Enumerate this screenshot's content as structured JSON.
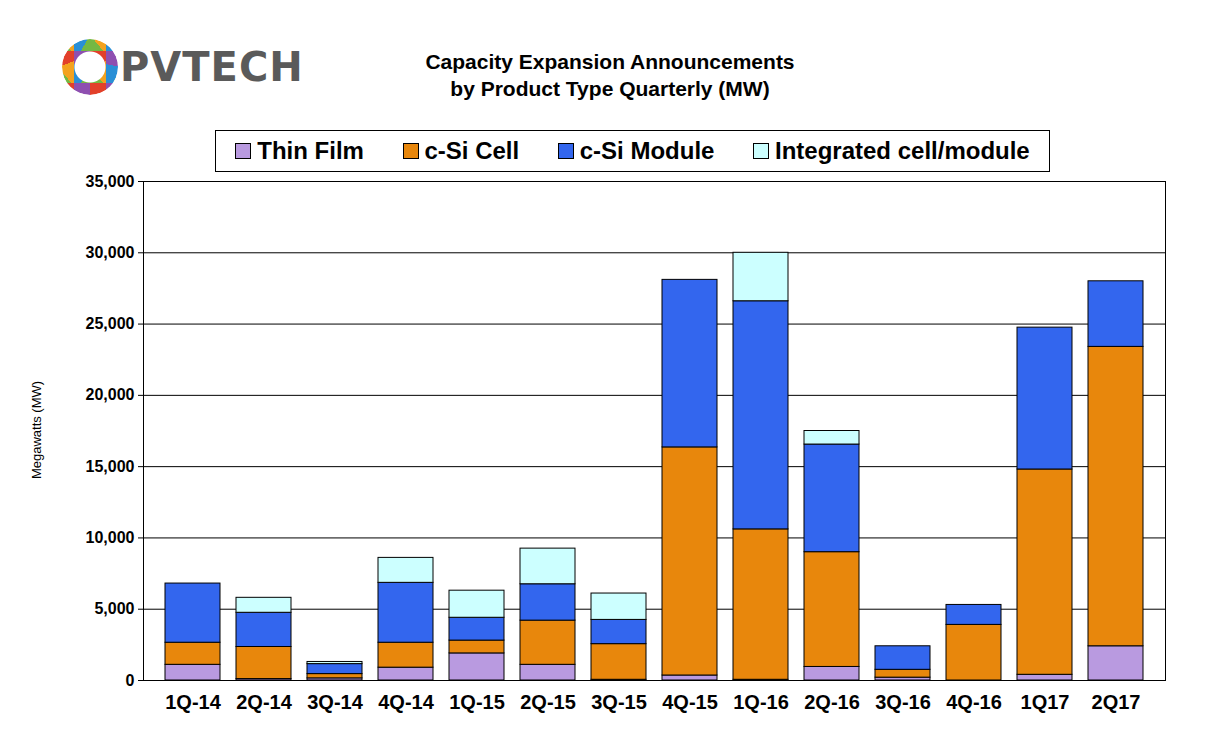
{
  "chart_data": {
    "type": "bar",
    "stacked": true,
    "logo": "PVTECH",
    "title": "Capacity Expansion Announcements",
    "subtitle": "by Product Type Quarterly (MW)",
    "ylabel": "Megawatts (MW)",
    "categories": [
      "1Q-14",
      "2Q-14",
      "3Q-14",
      "4Q-14",
      "1Q-15",
      "2Q-15",
      "3Q-15",
      "4Q-15",
      "1Q-16",
      "2Q-16",
      "3Q-16",
      "4Q-16",
      "1Q17",
      "2Q17"
    ],
    "series": [
      {
        "name": "Thin Film",
        "color": "#b99ae0",
        "values": [
          1100,
          100,
          150,
          900,
          1900,
          1100,
          50,
          350,
          50,
          950,
          200,
          0,
          400,
          2400
        ]
      },
      {
        "name": "c-Si Cell",
        "color": "#e8870c",
        "values": [
          1550,
          2250,
          300,
          1750,
          900,
          3100,
          2500,
          16000,
          10550,
          8050,
          550,
          3900,
          14400,
          21000
        ]
      },
      {
        "name": "c-Si Module",
        "color": "#3366ee",
        "values": [
          4150,
          2400,
          700,
          4200,
          1600,
          2550,
          1700,
          11750,
          16000,
          7550,
          1650,
          1400,
          9950,
          4600
        ]
      },
      {
        "name": "Integrated cell/module",
        "color": "#ccffff",
        "values": [
          0,
          1050,
          150,
          1750,
          1900,
          2500,
          1850,
          0,
          3400,
          950,
          0,
          0,
          0,
          0
        ]
      }
    ],
    "ylim": [
      0,
      35000
    ],
    "yticks": [
      0,
      {
        "value": 5000,
        "label": "5,000"
      },
      {
        "value": 10000,
        "label": "10,000"
      },
      {
        "value": 15000,
        "label": "15,000"
      },
      {
        "value": 20000,
        "label": "20,000"
      },
      {
        "value": 25000,
        "label": "25,000"
      },
      {
        "value": 30000,
        "label": "30,000"
      },
      {
        "value": 35000,
        "label": "35,000"
      }
    ],
    "grid": true,
    "legend": "top"
  }
}
